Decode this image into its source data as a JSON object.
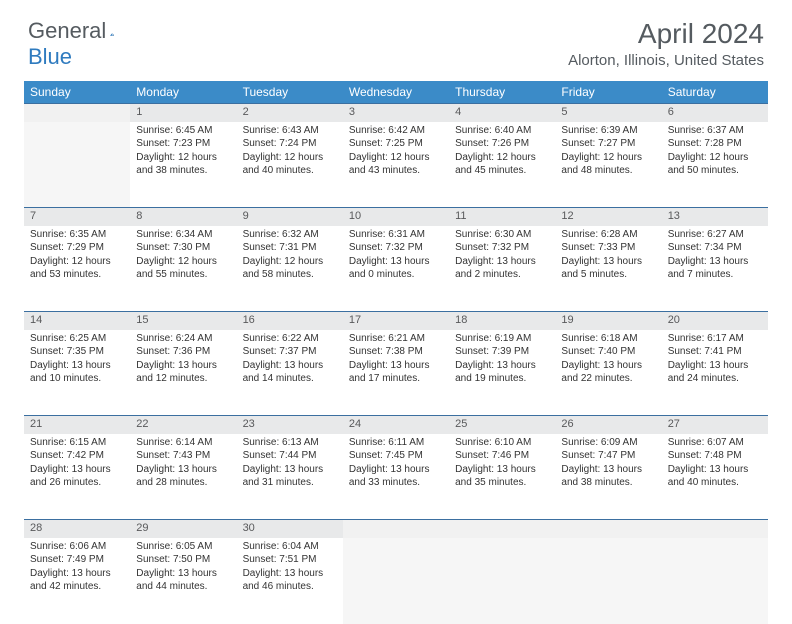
{
  "logo": {
    "word1": "General",
    "word2": "Blue"
  },
  "title": "April 2024",
  "location": "Alorton, Illinois, United States",
  "colors": {
    "header_bg": "#3b8bc8",
    "header_text": "#ffffff",
    "daynum_bg": "#e8e9ea",
    "rule": "#3b6fa0",
    "text": "#333333",
    "muted": "#555b60"
  },
  "fonts": {
    "title_size": 28,
    "location_size": 15,
    "dayname_size": 12,
    "body_size": 10
  },
  "day_names": [
    "Sunday",
    "Monday",
    "Tuesday",
    "Wednesday",
    "Thursday",
    "Friday",
    "Saturday"
  ],
  "weeks": [
    [
      null,
      {
        "n": "1",
        "sr": "Sunrise: 6:45 AM",
        "ss": "Sunset: 7:23 PM",
        "d1": "Daylight: 12 hours",
        "d2": "and 38 minutes."
      },
      {
        "n": "2",
        "sr": "Sunrise: 6:43 AM",
        "ss": "Sunset: 7:24 PM",
        "d1": "Daylight: 12 hours",
        "d2": "and 40 minutes."
      },
      {
        "n": "3",
        "sr": "Sunrise: 6:42 AM",
        "ss": "Sunset: 7:25 PM",
        "d1": "Daylight: 12 hours",
        "d2": "and 43 minutes."
      },
      {
        "n": "4",
        "sr": "Sunrise: 6:40 AM",
        "ss": "Sunset: 7:26 PM",
        "d1": "Daylight: 12 hours",
        "d2": "and 45 minutes."
      },
      {
        "n": "5",
        "sr": "Sunrise: 6:39 AM",
        "ss": "Sunset: 7:27 PM",
        "d1": "Daylight: 12 hours",
        "d2": "and 48 minutes."
      },
      {
        "n": "6",
        "sr": "Sunrise: 6:37 AM",
        "ss": "Sunset: 7:28 PM",
        "d1": "Daylight: 12 hours",
        "d2": "and 50 minutes."
      }
    ],
    [
      {
        "n": "7",
        "sr": "Sunrise: 6:35 AM",
        "ss": "Sunset: 7:29 PM",
        "d1": "Daylight: 12 hours",
        "d2": "and 53 minutes."
      },
      {
        "n": "8",
        "sr": "Sunrise: 6:34 AM",
        "ss": "Sunset: 7:30 PM",
        "d1": "Daylight: 12 hours",
        "d2": "and 55 minutes."
      },
      {
        "n": "9",
        "sr": "Sunrise: 6:32 AM",
        "ss": "Sunset: 7:31 PM",
        "d1": "Daylight: 12 hours",
        "d2": "and 58 minutes."
      },
      {
        "n": "10",
        "sr": "Sunrise: 6:31 AM",
        "ss": "Sunset: 7:32 PM",
        "d1": "Daylight: 13 hours",
        "d2": "and 0 minutes."
      },
      {
        "n": "11",
        "sr": "Sunrise: 6:30 AM",
        "ss": "Sunset: 7:32 PM",
        "d1": "Daylight: 13 hours",
        "d2": "and 2 minutes."
      },
      {
        "n": "12",
        "sr": "Sunrise: 6:28 AM",
        "ss": "Sunset: 7:33 PM",
        "d1": "Daylight: 13 hours",
        "d2": "and 5 minutes."
      },
      {
        "n": "13",
        "sr": "Sunrise: 6:27 AM",
        "ss": "Sunset: 7:34 PM",
        "d1": "Daylight: 13 hours",
        "d2": "and 7 minutes."
      }
    ],
    [
      {
        "n": "14",
        "sr": "Sunrise: 6:25 AM",
        "ss": "Sunset: 7:35 PM",
        "d1": "Daylight: 13 hours",
        "d2": "and 10 minutes."
      },
      {
        "n": "15",
        "sr": "Sunrise: 6:24 AM",
        "ss": "Sunset: 7:36 PM",
        "d1": "Daylight: 13 hours",
        "d2": "and 12 minutes."
      },
      {
        "n": "16",
        "sr": "Sunrise: 6:22 AM",
        "ss": "Sunset: 7:37 PM",
        "d1": "Daylight: 13 hours",
        "d2": "and 14 minutes."
      },
      {
        "n": "17",
        "sr": "Sunrise: 6:21 AM",
        "ss": "Sunset: 7:38 PM",
        "d1": "Daylight: 13 hours",
        "d2": "and 17 minutes."
      },
      {
        "n": "18",
        "sr": "Sunrise: 6:19 AM",
        "ss": "Sunset: 7:39 PM",
        "d1": "Daylight: 13 hours",
        "d2": "and 19 minutes."
      },
      {
        "n": "19",
        "sr": "Sunrise: 6:18 AM",
        "ss": "Sunset: 7:40 PM",
        "d1": "Daylight: 13 hours",
        "d2": "and 22 minutes."
      },
      {
        "n": "20",
        "sr": "Sunrise: 6:17 AM",
        "ss": "Sunset: 7:41 PM",
        "d1": "Daylight: 13 hours",
        "d2": "and 24 minutes."
      }
    ],
    [
      {
        "n": "21",
        "sr": "Sunrise: 6:15 AM",
        "ss": "Sunset: 7:42 PM",
        "d1": "Daylight: 13 hours",
        "d2": "and 26 minutes."
      },
      {
        "n": "22",
        "sr": "Sunrise: 6:14 AM",
        "ss": "Sunset: 7:43 PM",
        "d1": "Daylight: 13 hours",
        "d2": "and 28 minutes."
      },
      {
        "n": "23",
        "sr": "Sunrise: 6:13 AM",
        "ss": "Sunset: 7:44 PM",
        "d1": "Daylight: 13 hours",
        "d2": "and 31 minutes."
      },
      {
        "n": "24",
        "sr": "Sunrise: 6:11 AM",
        "ss": "Sunset: 7:45 PM",
        "d1": "Daylight: 13 hours",
        "d2": "and 33 minutes."
      },
      {
        "n": "25",
        "sr": "Sunrise: 6:10 AM",
        "ss": "Sunset: 7:46 PM",
        "d1": "Daylight: 13 hours",
        "d2": "and 35 minutes."
      },
      {
        "n": "26",
        "sr": "Sunrise: 6:09 AM",
        "ss": "Sunset: 7:47 PM",
        "d1": "Daylight: 13 hours",
        "d2": "and 38 minutes."
      },
      {
        "n": "27",
        "sr": "Sunrise: 6:07 AM",
        "ss": "Sunset: 7:48 PM",
        "d1": "Daylight: 13 hours",
        "d2": "and 40 minutes."
      }
    ],
    [
      {
        "n": "28",
        "sr": "Sunrise: 6:06 AM",
        "ss": "Sunset: 7:49 PM",
        "d1": "Daylight: 13 hours",
        "d2": "and 42 minutes."
      },
      {
        "n": "29",
        "sr": "Sunrise: 6:05 AM",
        "ss": "Sunset: 7:50 PM",
        "d1": "Daylight: 13 hours",
        "d2": "and 44 minutes."
      },
      {
        "n": "30",
        "sr": "Sunrise: 6:04 AM",
        "ss": "Sunset: 7:51 PM",
        "d1": "Daylight: 13 hours",
        "d2": "and 46 minutes."
      },
      null,
      null,
      null,
      null
    ]
  ]
}
